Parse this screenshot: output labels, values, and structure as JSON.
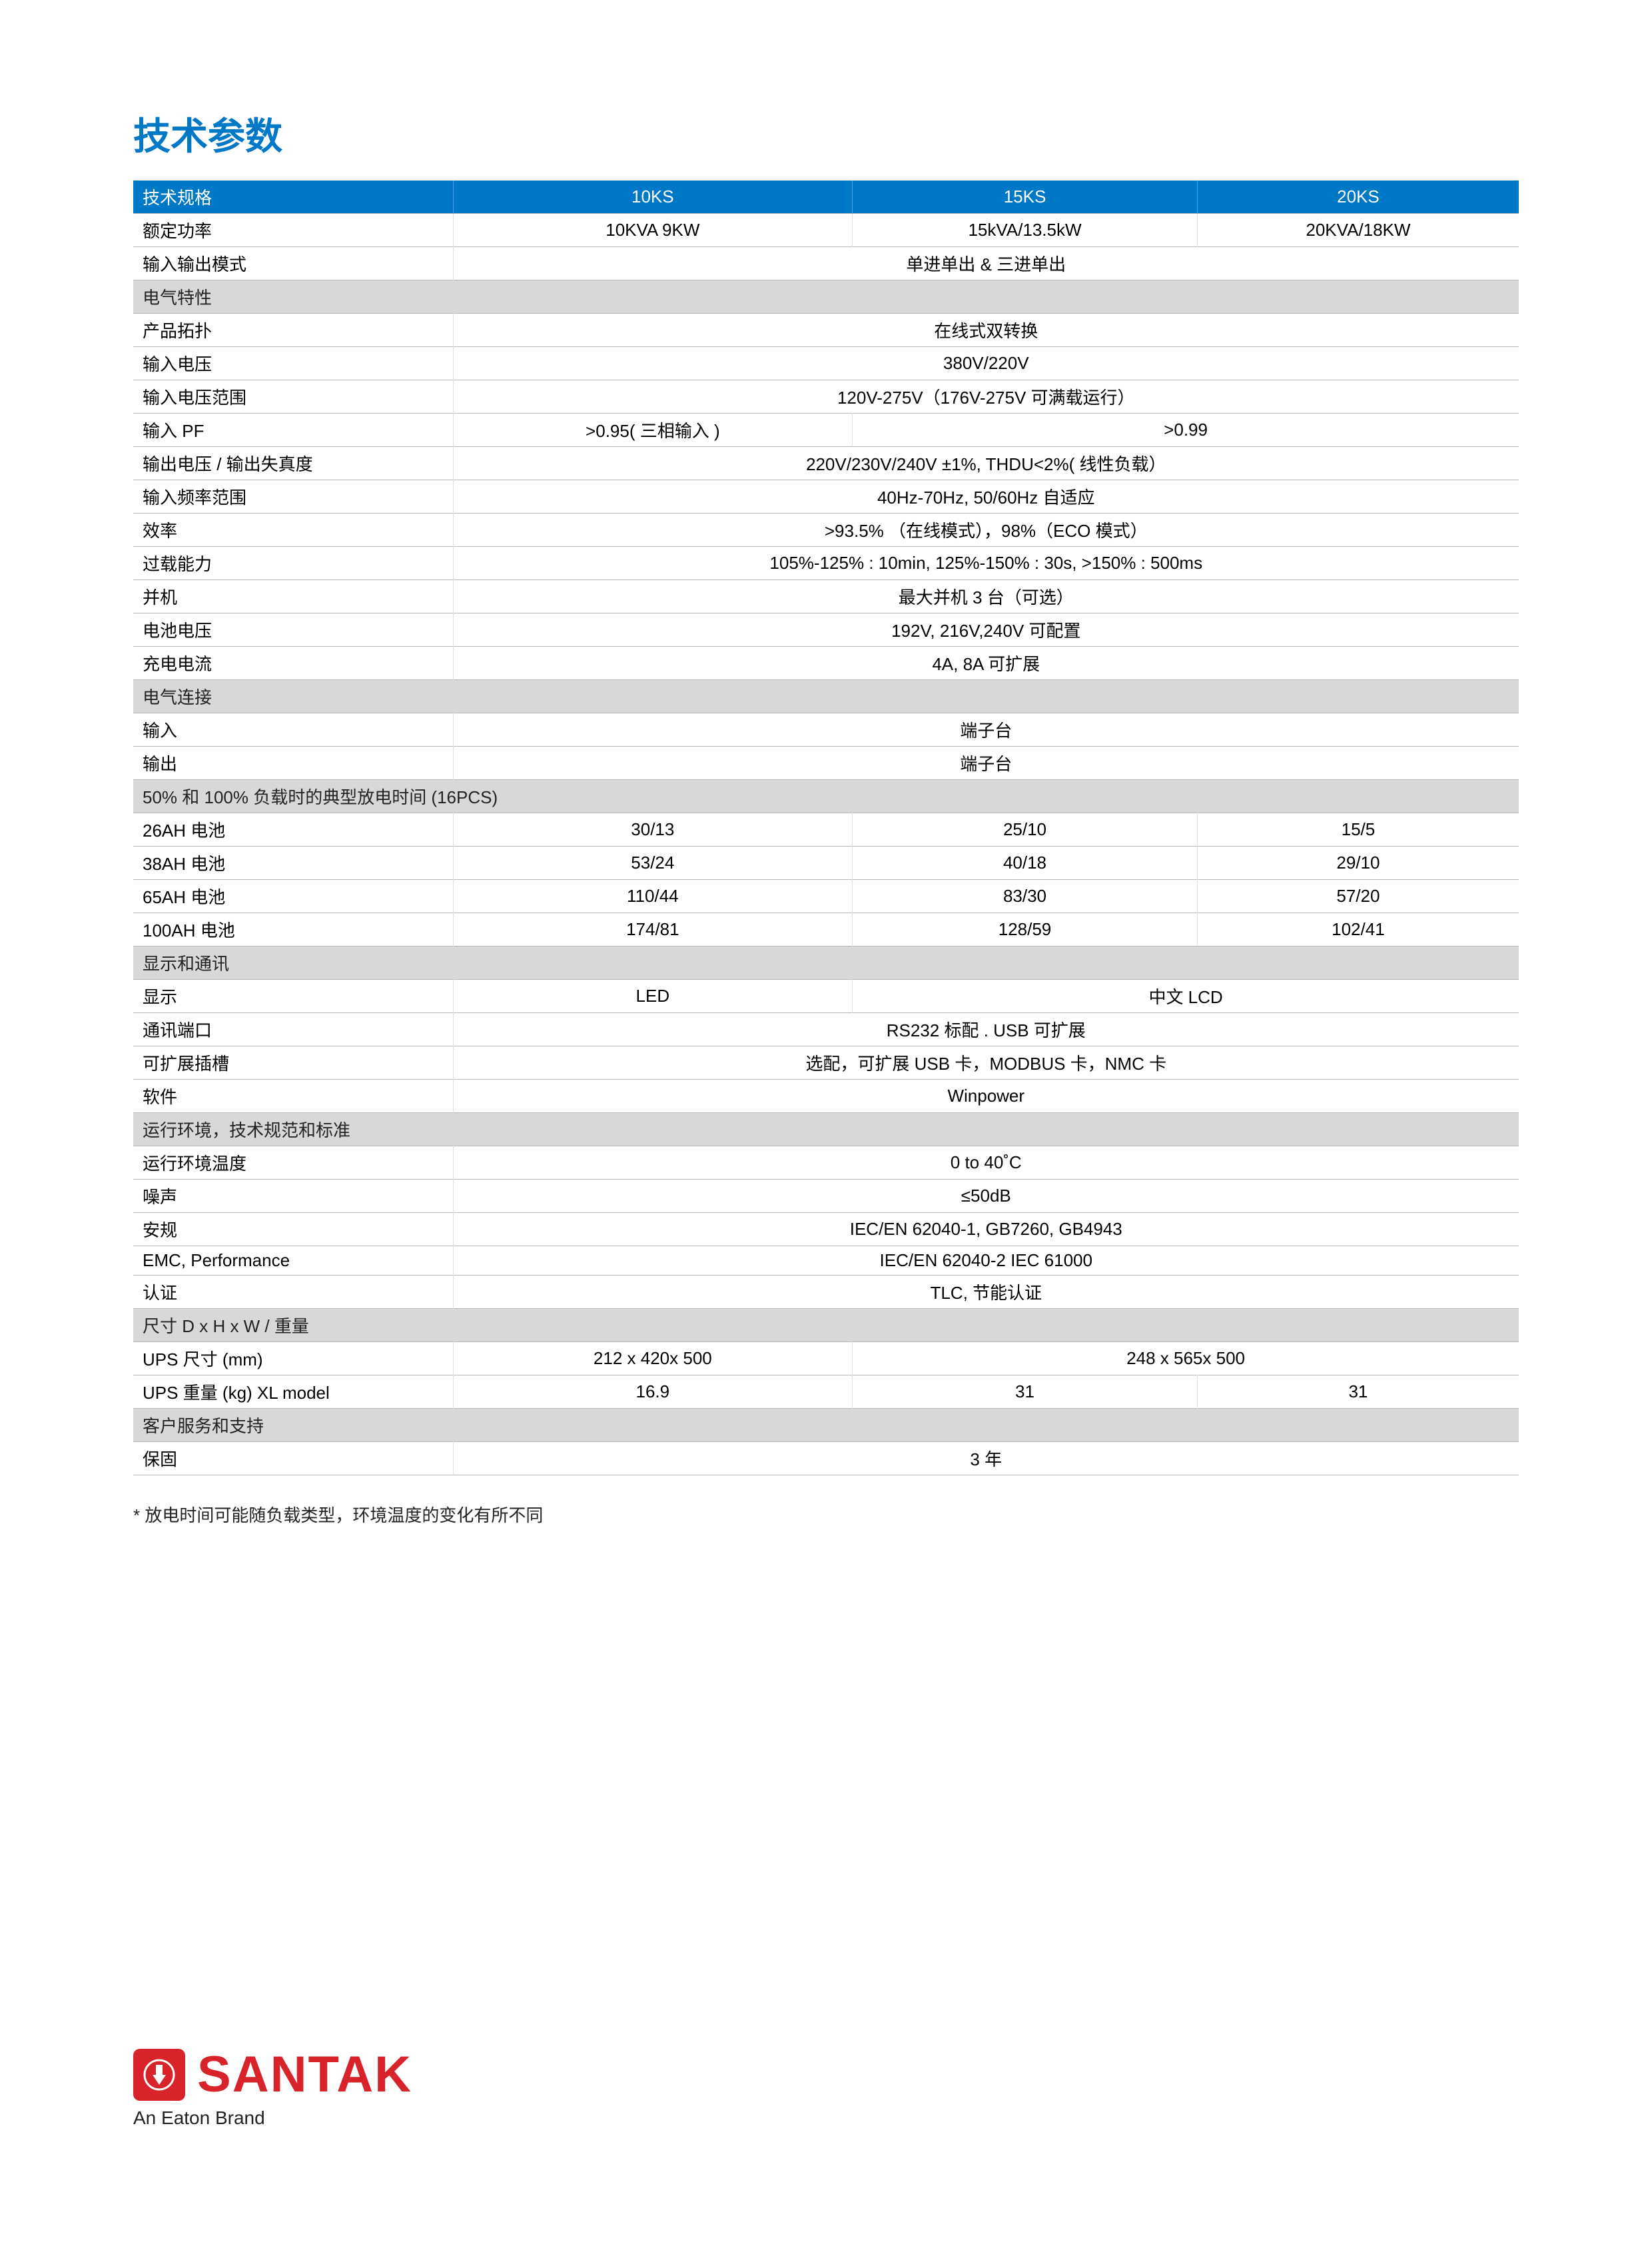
{
  "title": "技术参数",
  "footnote": "* 放电时间可能随负载类型，环境温度的变化有所不同",
  "brand": {
    "name": "SANTAK",
    "subtitle": "An Eaton Brand",
    "icon_glyph": "⚡"
  },
  "colors": {
    "primary": "#0078c8",
    "section_bg": "#d7d8d9",
    "border": "#b8b8b8",
    "brand_red": "#d8232a"
  },
  "header": {
    "label": "技术规格",
    "cols": [
      "10KS",
      "15KS",
      "20KS"
    ]
  },
  "sections": [
    {
      "type": "data",
      "label": "额定功率",
      "cells": [
        "10KVA 9KW",
        "15kVA/13.5kW",
        "20KVA/18KW"
      ]
    },
    {
      "type": "data",
      "label": "输入输出模式",
      "span": "单进单出 & 三进单出"
    },
    {
      "type": "section",
      "label": "电气特性"
    },
    {
      "type": "data",
      "label": "产品拓扑",
      "span": "在线式双转换"
    },
    {
      "type": "data",
      "label": "输入电压",
      "span": "380V/220V"
    },
    {
      "type": "data",
      "label": "输入电压范围",
      "span": "120V-275V（176V-275V 可满载运行）"
    },
    {
      "type": "data",
      "label": "输入 PF",
      "cells_custom": [
        {
          "text": ">0.95( 三相输入 )",
          "span": 1
        },
        {
          "text": ">0.99",
          "span": 2
        }
      ]
    },
    {
      "type": "data",
      "label": "输出电压 / 输出失真度",
      "span": "220V/230V/240V ±1%, THDU<2%( 线性负载）"
    },
    {
      "type": "data",
      "label": "输入频率范围",
      "span": "40Hz-70Hz, 50/60Hz 自适应"
    },
    {
      "type": "data",
      "label": "效率",
      "span": ">93.5% （在线模式），98%（ECO 模式）"
    },
    {
      "type": "data",
      "label": "过载能力",
      "span": "105%-125% : 10min, 125%-150% : 30s, >150% : 500ms"
    },
    {
      "type": "data",
      "label": "并机",
      "span": "最大并机 3 台（可选）"
    },
    {
      "type": "data",
      "label": "电池电压",
      "span": "192V, 216V,240V 可配置"
    },
    {
      "type": "data",
      "label": "充电电流",
      "span": "4A, 8A 可扩展"
    },
    {
      "type": "section",
      "label": "电气连接"
    },
    {
      "type": "data",
      "label": "输入",
      "span": "端子台"
    },
    {
      "type": "data",
      "label": "输出",
      "span": "端子台"
    },
    {
      "type": "section",
      "label": "50% 和 100% 负载时的典型放电时间 (16PCS)"
    },
    {
      "type": "data",
      "label": "26AH 电池",
      "cells": [
        "30/13",
        "25/10",
        "15/5"
      ]
    },
    {
      "type": "data",
      "label": "38AH 电池",
      "cells": [
        "53/24",
        "40/18",
        "29/10"
      ]
    },
    {
      "type": "data",
      "label": "65AH 电池",
      "cells": [
        "110/44",
        "83/30",
        "57/20"
      ]
    },
    {
      "type": "data",
      "label": "100AH 电池",
      "cells": [
        "174/81",
        "128/59",
        "102/41"
      ]
    },
    {
      "type": "section",
      "label": "显示和通讯"
    },
    {
      "type": "data",
      "label": "显示",
      "cells_custom": [
        {
          "text": "LED",
          "span": 1
        },
        {
          "text": "中文 LCD",
          "span": 2
        }
      ]
    },
    {
      "type": "data",
      "label": "通讯端口",
      "span": "RS232 标配 . USB 可扩展"
    },
    {
      "type": "data",
      "label": "可扩展插槽",
      "span": "选配，可扩展 USB 卡，MODBUS 卡，NMC 卡"
    },
    {
      "type": "data",
      "label": "软件",
      "span": "Winpower"
    },
    {
      "type": "section",
      "label": "运行环境，技术规范和标准"
    },
    {
      "type": "data",
      "label": "运行环境温度",
      "span": "0 to 40˚C"
    },
    {
      "type": "data",
      "label": "噪声",
      "span": "≤50dB"
    },
    {
      "type": "data",
      "label": "安规",
      "span": "IEC/EN 62040-1, GB7260, GB4943"
    },
    {
      "type": "data",
      "label": "EMC, Performance",
      "span": "IEC/EN 62040-2  IEC 61000"
    },
    {
      "type": "data",
      "label": "认证",
      "span": "TLC, 节能认证"
    },
    {
      "type": "section",
      "label": "尺寸 D x H x W / 重量"
    },
    {
      "type": "data",
      "label": "UPS 尺寸 (mm)",
      "cells_custom": [
        {
          "text": "212 x 420x 500",
          "span": 1
        },
        {
          "text": "248 x 565x 500",
          "span": 2
        }
      ]
    },
    {
      "type": "data",
      "label": "UPS 重量 (kg) XL model",
      "cells": [
        "16.9",
        "31",
        "31"
      ]
    },
    {
      "type": "section",
      "label": "客户服务和支持"
    },
    {
      "type": "data",
      "label": "保固",
      "span": "3 年"
    }
  ]
}
